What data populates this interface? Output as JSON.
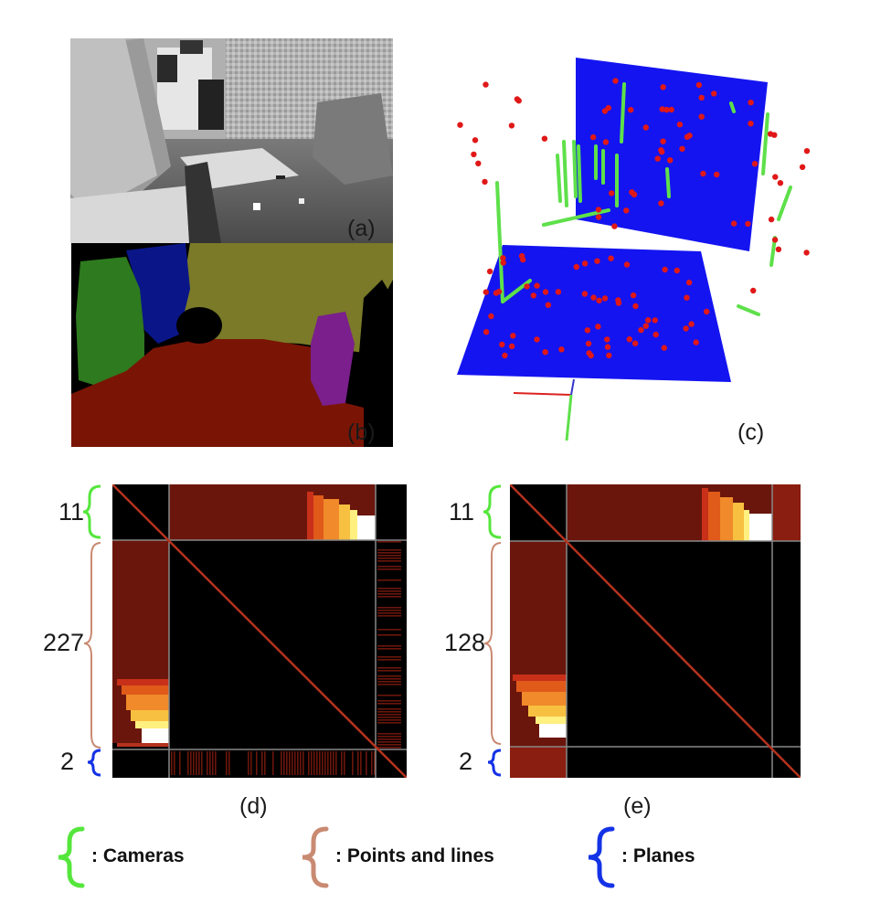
{
  "panels": {
    "a": {
      "label": "(a)"
    },
    "b": {
      "label": "(b)"
    },
    "c": {
      "label": "(c)"
    },
    "d": {
      "label": "(d)",
      "counts": [
        "11",
        "227",
        "2"
      ]
    },
    "e": {
      "label": "(e)",
      "counts": [
        "11",
        "128",
        "2"
      ]
    }
  },
  "legend": [
    {
      "text": ": Cameras",
      "color": "#55e63c",
      "icon": "brace-icon"
    },
    {
      "text": ": Points and lines",
      "color": "#c98a72",
      "icon": "brace-icon"
    },
    {
      "text": ": Planes",
      "color": "#1432e6",
      "icon": "brace-icon"
    }
  ],
  "colors": {
    "camera": "#55e63c",
    "point_line": "#c98a72",
    "plane": "#1432e6",
    "matrix_block": "#6b160c",
    "matrix_diag": "#b5321e"
  }
}
